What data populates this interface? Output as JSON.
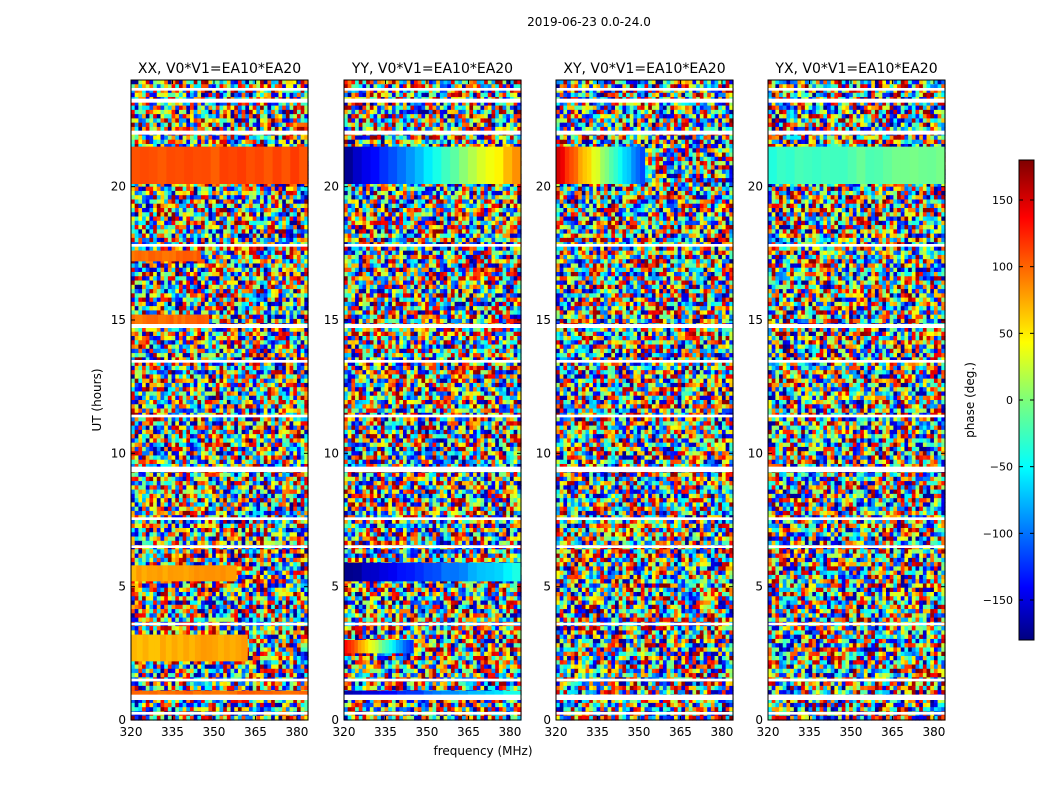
{
  "figure": {
    "suptitle": "2019-06-23 0.0-24.0"
  },
  "chart_data": {
    "type": "heatmap",
    "title": "2019-06-23 0.0-24.0",
    "xlabel": "frequency (MHz)",
    "ylabel": "UT (hours)",
    "xlim": [
      320,
      384
    ],
    "ylim": [
      0,
      24
    ],
    "x_ticks": [
      320,
      335,
      350,
      365,
      380
    ],
    "y_ticks": [
      0,
      5,
      10,
      15,
      20
    ],
    "panels": [
      {
        "id": "xx",
        "title": "XX, V0*V1=EA10*EA20"
      },
      {
        "id": "yy",
        "title": "YY, V0*V1=EA10*EA20"
      },
      {
        "id": "xy",
        "title": "XY, V0*V1=EA10*EA20"
      },
      {
        "id": "yx",
        "title": "YX, V0*V1=EA10*EA20"
      }
    ],
    "colorbar": {
      "label": "phase (deg.)",
      "range": [
        -180,
        180
      ],
      "ticks": [
        150,
        100,
        50,
        0,
        -50,
        -100,
        -150
      ],
      "tick_labels": [
        "150",
        "100",
        "50",
        "0",
        "−50",
        "−100",
        "−150"
      ],
      "colormap": "jet"
    },
    "flagged_bands_hours": [
      [
        0.2,
        0.3
      ],
      [
        0.75,
        0.95
      ],
      [
        1.45,
        1.55
      ],
      [
        3.55,
        3.65
      ],
      [
        6.45,
        6.55
      ],
      [
        7.5,
        7.6
      ],
      [
        9.3,
        9.5
      ],
      [
        11.35,
        11.45
      ],
      [
        13.4,
        13.5
      ],
      [
        14.7,
        14.85
      ],
      [
        17.75,
        17.85
      ],
      [
        21.95,
        22.1
      ],
      [
        23.15,
        23.3
      ],
      [
        23.6,
        23.7
      ]
    ],
    "coherent_bands": [
      {
        "panel": "xx",
        "y0": 0.9,
        "y1": 1.1,
        "x0": 320,
        "x1": 384,
        "phase_start": 95,
        "phase_end": 100
      },
      {
        "panel": "xx",
        "y0": 2.2,
        "y1": 3.2,
        "x0": 320,
        "x1": 362,
        "phase_start": 70,
        "phase_end": 80
      },
      {
        "panel": "xx",
        "y0": 5.2,
        "y1": 5.8,
        "x0": 320,
        "x1": 358,
        "phase_start": 75,
        "phase_end": 85
      },
      {
        "panel": "xx",
        "y0": 14.8,
        "y1": 15.2,
        "x0": 320,
        "x1": 348,
        "phase_start": 95,
        "phase_end": 100
      },
      {
        "panel": "xx",
        "y0": 17.2,
        "y1": 17.6,
        "x0": 320,
        "x1": 345,
        "phase_start": 95,
        "phase_end": 100
      },
      {
        "panel": "xx",
        "y0": 20.1,
        "y1": 21.5,
        "x0": 320,
        "x1": 384,
        "phase_start": 105,
        "phase_end": 110
      },
      {
        "panel": "yy",
        "y0": 0.9,
        "y1": 1.1,
        "x0": 320,
        "x1": 384,
        "phase_start": -165,
        "phase_end": -35
      },
      {
        "panel": "yy",
        "y0": 2.5,
        "y1": 3.0,
        "x0": 320,
        "x1": 345,
        "phase_start": 140,
        "phase_end": -120
      },
      {
        "panel": "yy",
        "y0": 5.2,
        "y1": 5.9,
        "x0": 320,
        "x1": 384,
        "phase_start": -175,
        "phase_end": -40
      },
      {
        "panel": "yy",
        "y0": 20.1,
        "y1": 21.5,
        "x0": 320,
        "x1": 384,
        "phase_start": -170,
        "phase_end": 80
      },
      {
        "panel": "xy",
        "y0": 20.1,
        "y1": 21.5,
        "x0": 320,
        "x1": 352,
        "phase_start": 150,
        "phase_end": -110
      },
      {
        "panel": "yx",
        "y0": 20.1,
        "y1": 21.5,
        "x0": 320,
        "x1": 384,
        "phase_start": -30,
        "phase_end": 0
      }
    ]
  }
}
